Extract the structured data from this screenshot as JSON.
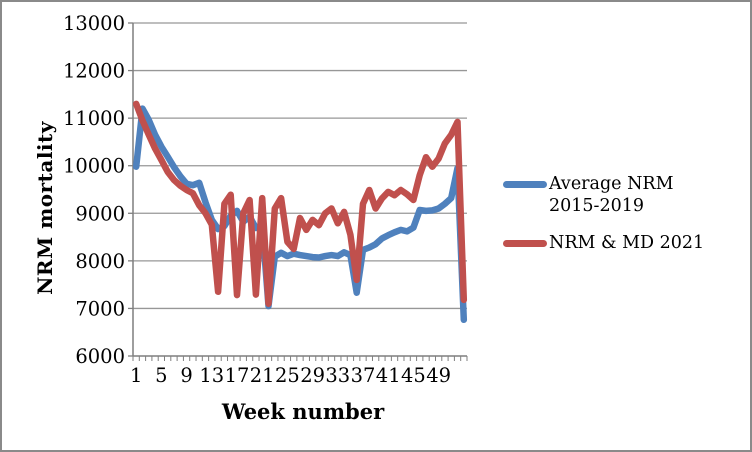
{
  "chart_data": {
    "type": "line",
    "title": "",
    "xlabel": "Week number",
    "ylabel": "NRM mortality",
    "x": [
      1,
      2,
      3,
      4,
      5,
      6,
      7,
      8,
      9,
      10,
      11,
      12,
      13,
      14,
      15,
      16,
      17,
      18,
      19,
      20,
      21,
      22,
      23,
      24,
      25,
      26,
      27,
      28,
      29,
      30,
      31,
      32,
      33,
      34,
      35,
      36,
      37,
      38,
      39,
      40,
      41,
      42,
      43,
      44,
      45,
      46,
      47,
      48,
      49,
      50,
      51,
      52,
      53
    ],
    "xticks": [
      1,
      5,
      9,
      13,
      17,
      21,
      25,
      29,
      33,
      37,
      41,
      45,
      49
    ],
    "yticks": [
      6000,
      7000,
      8000,
      9000,
      10000,
      11000,
      12000,
      13000
    ],
    "ylim": [
      6000,
      13000
    ],
    "grid": true,
    "legend_position": "right",
    "colors": {
      "grid": "#979797",
      "axis": "#7f7f7f",
      "text": "#000000",
      "border": "#8a8a8a"
    },
    "series": [
      {
        "name": "Average NRM 2015-2019",
        "color": "#4F81BD",
        "values": [
          9980,
          11200,
          10960,
          10650,
          10400,
          10190,
          9970,
          9780,
          9620,
          9590,
          9640,
          9230,
          8860,
          8670,
          8730,
          8950,
          9050,
          8820,
          8930,
          8690,
          8750,
          7050,
          8090,
          8170,
          8100,
          8150,
          8120,
          8100,
          8080,
          8070,
          8100,
          8120,
          8100,
          8180,
          8120,
          7330,
          8230,
          8280,
          8350,
          8470,
          8540,
          8600,
          8650,
          8620,
          8700,
          9070,
          9050,
          9060,
          9100,
          9200,
          9320,
          9950,
          6760
        ]
      },
      {
        "name": "NRM & MD 2021",
        "color": "#C0504D",
        "values": [
          11300,
          10950,
          10650,
          10360,
          10120,
          9870,
          9700,
          9580,
          9490,
          9420,
          9170,
          9000,
          8760,
          7350,
          9200,
          9390,
          7280,
          9000,
          9280,
          7290,
          9320,
          7100,
          9100,
          9320,
          8400,
          8250,
          8900,
          8650,
          8860,
          8750,
          9000,
          9100,
          8790,
          9030,
          8550,
          7600,
          9200,
          9490,
          9100,
          9310,
          9450,
          9380,
          9490,
          9400,
          9280,
          9800,
          10180,
          9980,
          10150,
          10470,
          10650,
          10920,
          7180
        ]
      }
    ]
  }
}
